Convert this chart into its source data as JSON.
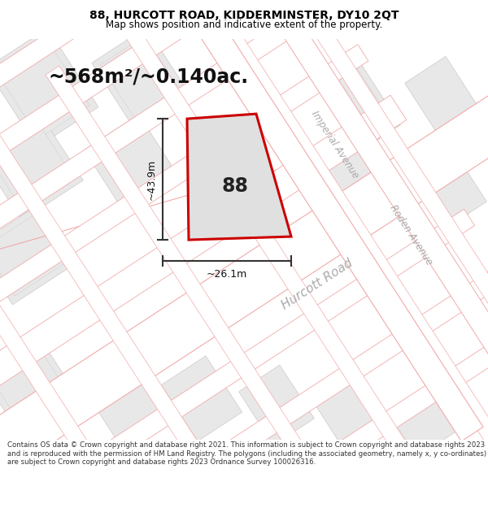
{
  "title": "88, HURCOTT ROAD, KIDDERMINSTER, DY10 2QT",
  "subtitle": "Map shows position and indicative extent of the property.",
  "area_text": "~568m²/~0.140ac.",
  "plot_number": "88",
  "dim_height": "~43.9m",
  "dim_width": "~26.1m",
  "map_bg": "#ffffff",
  "street_line_color": "#f0aaaa",
  "street_line_lw": 0.8,
  "block_fill": "#e8e8e8",
  "block_edge": "#d0c8c8",
  "block_lw": 0.5,
  "plot_fill": "#e0e0e0",
  "plot_edge": "#cc0000",
  "plot_lw": 2.2,
  "road_label_color": "#aaaaaa",
  "dim_line_color": "#333333",
  "annotation_color": "#111111",
  "footer_text": "Contains OS data © Crown copyright and database right 2021. This information is subject to Crown copyright and database rights 2023 and is reproduced with the permission of HM Land Registry. The polygons (including the associated geometry, namely x, y co-ordinates) are subject to Crown copyright and database rights 2023 Ordnance Survey 100026316.",
  "title_fontsize": 10,
  "subtitle_fontsize": 8.5,
  "area_fontsize": 17,
  "plot_num_fontsize": 17,
  "dim_fontsize": 9,
  "road_label_fontsize_main": 11,
  "road_label_fontsize_side": 8.5,
  "footer_fontsize": 6.2
}
